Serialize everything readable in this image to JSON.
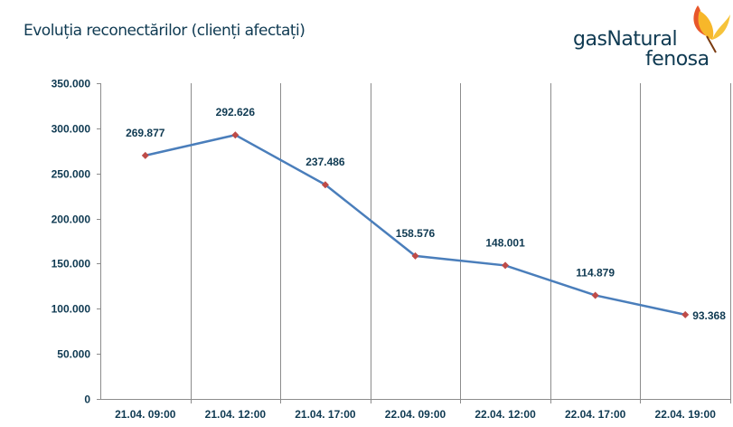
{
  "header": {
    "title": "Evoluția reconectărilor (clienți afectați)",
    "logo_text_line1": "gasNatural",
    "logo_text_line2": "fenosa"
  },
  "colors": {
    "line": "#4a7ebb",
    "marker": "#be4b48",
    "text": "#0f3a52",
    "grid": "#8c8c8c"
  },
  "chart_data": {
    "type": "line",
    "title": "Evoluția reconectărilor (clienți afectați)",
    "xlabel": "",
    "ylabel": "",
    "categories": [
      "21.04. 09:00",
      "21.04. 12:00",
      "21.04. 17:00",
      "22.04. 09:00",
      "22.04. 12:00",
      "22.04. 17:00",
      "22.04. 19:00"
    ],
    "series": [
      {
        "name": "Clienți afectați",
        "values": [
          269877,
          292626,
          237486,
          158576,
          148001,
          114879,
          93368
        ]
      }
    ],
    "data_labels": [
      "269.877",
      "292.626",
      "237.486",
      "158.576",
      "148.001",
      "114.879",
      "93.368"
    ],
    "ylim": [
      0,
      350000
    ],
    "yticks": [
      0,
      50000,
      100000,
      150000,
      200000,
      250000,
      300000,
      350000
    ],
    "ytick_labels": [
      "0",
      "50.000",
      "100.000",
      "150.000",
      "200.000",
      "250.000",
      "300.000",
      "350.000"
    ],
    "grid": "vertical",
    "legend": "none"
  }
}
